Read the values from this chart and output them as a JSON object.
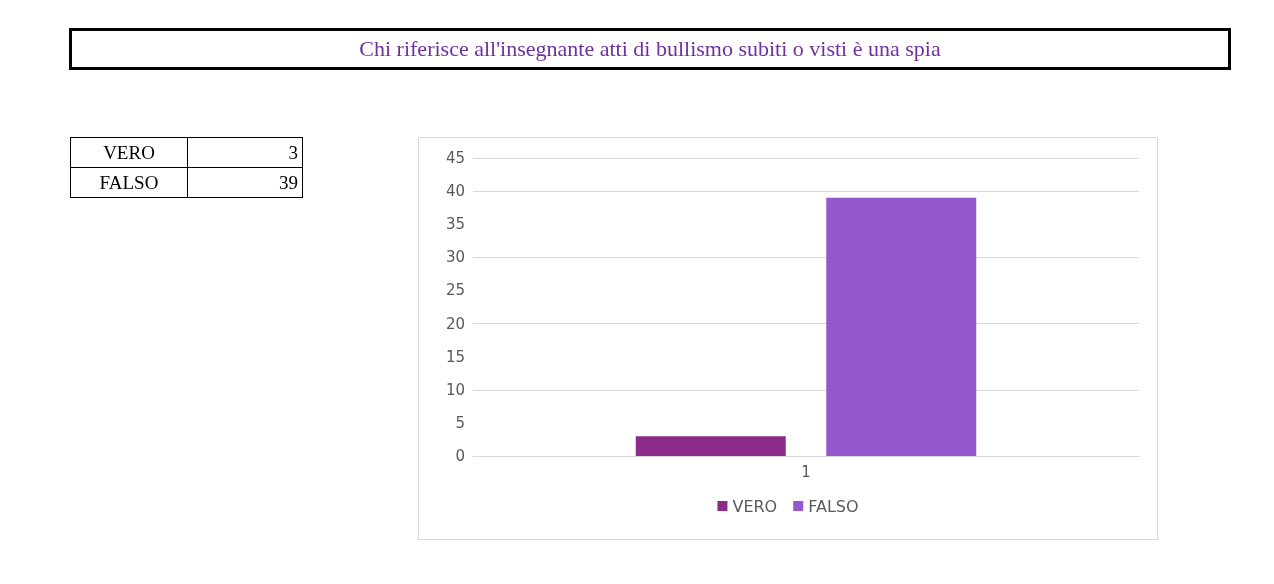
{
  "chart_data": [
    {
      "type": "other",
      "categories": [
        "VERO",
        "FALSO"
      ],
      "values": [
        3,
        39
      ],
      "data_labels": true
    },
    {
      "type": "bar",
      "title": "Chi riferisce all'insegnante atti di bullismo subiti o visti è una spia",
      "categories": [
        "1"
      ],
      "series": [
        {
          "name": "VERO",
          "color": "#8b2c8b",
          "values": [
            3
          ]
        },
        {
          "name": "FALSO",
          "color": "#9457cc",
          "values": [
            39
          ]
        }
      ],
      "ylim": [
        0,
        45
      ],
      "yticks": [
        0,
        5,
        10,
        15,
        20,
        25,
        30,
        35,
        40,
        45
      ],
      "grid": "y",
      "legend": "bottom"
    }
  ]
}
